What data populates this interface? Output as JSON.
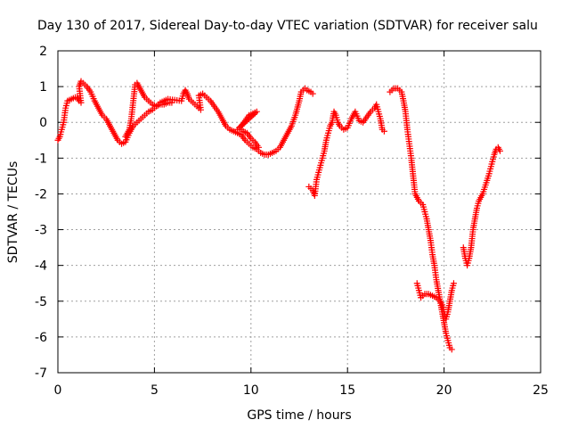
{
  "chart_data": {
    "type": "scatter",
    "title": "Day 130 of 2017, Sidereal Day-to-day VTEC variation (SDTVAR) for receiver salu",
    "xlabel": "GPS time / hours",
    "ylabel": "SDTVAR / TECUs",
    "xlim": [
      0,
      25
    ],
    "ylim": [
      -7,
      2
    ],
    "xticks": [
      "0",
      "5",
      "10",
      "15",
      "20",
      "25"
    ],
    "yticks": [
      "2",
      "1",
      "0",
      "-1",
      "-2",
      "-3",
      "-4",
      "-5",
      "-6",
      "-7"
    ],
    "grid": true,
    "legend": "none",
    "marker": "+",
    "color": "#ff0000",
    "series": [
      {
        "points": [
          [
            0.0,
            -0.5
          ],
          [
            0.1,
            -0.4
          ],
          [
            0.2,
            -0.2
          ],
          [
            0.3,
            0.0
          ],
          [
            0.4,
            0.4
          ],
          [
            0.5,
            0.6
          ],
          [
            0.7,
            0.65
          ],
          [
            0.9,
            0.7
          ],
          [
            1.0,
            0.7
          ],
          [
            1.1,
            0.6
          ],
          [
            1.2,
            0.55
          ],
          [
            1.1,
            1.0
          ],
          [
            1.2,
            1.15
          ],
          [
            1.3,
            1.1
          ],
          [
            1.5,
            1.0
          ],
          [
            1.7,
            0.85
          ],
          [
            1.9,
            0.6
          ],
          [
            2.1,
            0.4
          ],
          [
            2.3,
            0.2
          ],
          [
            2.5,
            0.1
          ],
          [
            2.7,
            -0.1
          ],
          [
            2.9,
            -0.3
          ],
          [
            3.1,
            -0.5
          ],
          [
            3.3,
            -0.6
          ],
          [
            3.5,
            -0.55
          ],
          [
            3.7,
            -0.3
          ],
          [
            3.9,
            -0.1
          ],
          [
            4.1,
            0.0
          ],
          [
            4.3,
            0.1
          ],
          [
            4.5,
            0.2
          ],
          [
            4.7,
            0.3
          ],
          [
            4.9,
            0.35
          ],
          [
            5.1,
            0.45
          ],
          [
            5.3,
            0.5
          ],
          [
            5.5,
            0.5
          ],
          [
            5.7,
            0.55
          ],
          [
            5.9,
            0.55
          ],
          [
            3.5,
            -0.4
          ],
          [
            3.7,
            -0.2
          ],
          [
            3.8,
            0.1
          ],
          [
            4.0,
            1.05
          ],
          [
            4.1,
            1.1
          ],
          [
            4.3,
            0.9
          ],
          [
            4.5,
            0.7
          ],
          [
            4.7,
            0.6
          ],
          [
            4.9,
            0.5
          ],
          [
            5.1,
            0.45
          ],
          [
            5.3,
            0.55
          ],
          [
            5.5,
            0.6
          ],
          [
            5.7,
            0.65
          ],
          [
            6.4,
            0.6
          ],
          [
            6.5,
            0.8
          ],
          [
            6.6,
            0.9
          ],
          [
            6.7,
            0.8
          ],
          [
            6.8,
            0.65
          ],
          [
            7.0,
            0.55
          ],
          [
            7.2,
            0.45
          ],
          [
            7.4,
            0.35
          ],
          [
            7.3,
            0.75
          ],
          [
            7.5,
            0.8
          ],
          [
            7.7,
            0.7
          ],
          [
            7.9,
            0.6
          ],
          [
            8.1,
            0.45
          ],
          [
            8.3,
            0.3
          ],
          [
            8.5,
            0.1
          ],
          [
            8.7,
            -0.1
          ],
          [
            8.9,
            -0.2
          ],
          [
            9.1,
            -0.25
          ],
          [
            9.3,
            -0.3
          ],
          [
            9.5,
            -0.35
          ],
          [
            9.7,
            -0.5
          ],
          [
            9.9,
            -0.6
          ],
          [
            10.1,
            -0.7
          ],
          [
            10.3,
            -0.75
          ],
          [
            10.5,
            -0.85
          ],
          [
            10.7,
            -0.9
          ],
          [
            10.9,
            -0.9
          ],
          [
            11.1,
            -0.85
          ],
          [
            11.3,
            -0.8
          ],
          [
            11.5,
            -0.7
          ],
          [
            11.7,
            -0.5
          ],
          [
            11.9,
            -0.3
          ],
          [
            12.1,
            -0.1
          ],
          [
            12.3,
            0.2
          ],
          [
            12.5,
            0.6
          ],
          [
            12.6,
            0.85
          ],
          [
            12.7,
            0.9
          ],
          [
            12.8,
            0.95
          ],
          [
            12.9,
            0.9
          ],
          [
            13.1,
            0.85
          ],
          [
            13.2,
            0.8
          ],
          [
            9.3,
            -0.2
          ],
          [
            9.5,
            -0.1
          ],
          [
            9.7,
            0.05
          ],
          [
            9.9,
            0.2
          ],
          [
            10.1,
            0.25
          ],
          [
            10.3,
            0.3
          ],
          [
            9.4,
            -0.15
          ],
          [
            9.6,
            -0.25
          ],
          [
            9.8,
            -0.3
          ],
          [
            10.0,
            -0.45
          ],
          [
            10.2,
            -0.55
          ],
          [
            10.4,
            -0.7
          ],
          [
            13.0,
            -1.8
          ],
          [
            13.2,
            -1.9
          ],
          [
            13.3,
            -2.05
          ],
          [
            13.4,
            -1.6
          ],
          [
            13.5,
            -1.4
          ],
          [
            13.6,
            -1.2
          ],
          [
            13.7,
            -1.0
          ],
          [
            13.8,
            -0.8
          ],
          [
            13.9,
            -0.5
          ],
          [
            14.0,
            -0.3
          ],
          [
            14.1,
            -0.1
          ],
          [
            14.2,
            0.0
          ],
          [
            14.3,
            0.3
          ],
          [
            14.4,
            0.2
          ],
          [
            14.5,
            0.0
          ],
          [
            14.6,
            -0.1
          ],
          [
            14.8,
            -0.2
          ],
          [
            15.0,
            -0.15
          ],
          [
            15.2,
            0.1
          ],
          [
            15.4,
            0.3
          ],
          [
            15.6,
            0.05
          ],
          [
            15.8,
            0.0
          ],
          [
            16.0,
            0.15
          ],
          [
            16.2,
            0.3
          ],
          [
            16.4,
            0.4
          ],
          [
            16.5,
            0.5
          ],
          [
            16.6,
            0.3
          ],
          [
            16.7,
            0.1
          ],
          [
            16.8,
            -0.2
          ],
          [
            16.9,
            -0.25
          ],
          [
            17.2,
            0.85
          ],
          [
            17.4,
            0.95
          ],
          [
            17.6,
            0.95
          ],
          [
            17.8,
            0.85
          ],
          [
            17.9,
            0.6
          ],
          [
            18.0,
            0.3
          ],
          [
            18.1,
            -0.2
          ],
          [
            18.2,
            -0.6
          ],
          [
            18.3,
            -1.0
          ],
          [
            18.4,
            -1.5
          ],
          [
            18.5,
            -2.0
          ],
          [
            18.6,
            -2.1
          ],
          [
            18.7,
            -2.2
          ],
          [
            18.9,
            -2.3
          ],
          [
            19.0,
            -2.5
          ],
          [
            19.1,
            -2.7
          ],
          [
            19.2,
            -3.0
          ],
          [
            19.3,
            -3.3
          ],
          [
            19.4,
            -3.7
          ],
          [
            19.5,
            -4.0
          ],
          [
            19.6,
            -4.4
          ],
          [
            19.7,
            -4.7
          ],
          [
            19.8,
            -5.0
          ],
          [
            19.9,
            -5.3
          ],
          [
            20.0,
            -5.6
          ],
          [
            20.1,
            -5.9
          ],
          [
            20.2,
            -6.1
          ],
          [
            20.3,
            -6.3
          ],
          [
            20.4,
            -6.35
          ],
          [
            18.6,
            -4.5
          ],
          [
            18.7,
            -4.7
          ],
          [
            18.8,
            -4.9
          ],
          [
            19.0,
            -4.8
          ],
          [
            19.2,
            -4.8
          ],
          [
            19.4,
            -4.85
          ],
          [
            19.6,
            -4.9
          ],
          [
            19.8,
            -5.0
          ],
          [
            19.9,
            -5.1
          ],
          [
            20.0,
            -5.3
          ],
          [
            20.1,
            -5.5
          ],
          [
            20.2,
            -5.3
          ],
          [
            20.3,
            -5.0
          ],
          [
            20.4,
            -4.7
          ],
          [
            20.5,
            -4.5
          ],
          [
            21.0,
            -3.5
          ],
          [
            21.1,
            -3.8
          ],
          [
            21.2,
            -4.0
          ],
          [
            21.3,
            -3.8
          ],
          [
            21.4,
            -3.5
          ],
          [
            21.5,
            -3.0
          ],
          [
            21.6,
            -2.7
          ],
          [
            21.7,
            -2.4
          ],
          [
            21.8,
            -2.2
          ],
          [
            21.9,
            -2.1
          ],
          [
            22.0,
            -2.0
          ],
          [
            22.3,
            -1.5
          ],
          [
            22.4,
            -1.3
          ],
          [
            22.5,
            -1.1
          ],
          [
            22.6,
            -0.9
          ],
          [
            22.7,
            -0.75
          ],
          [
            22.8,
            -0.7
          ],
          [
            22.9,
            -0.8
          ]
        ]
      }
    ]
  }
}
